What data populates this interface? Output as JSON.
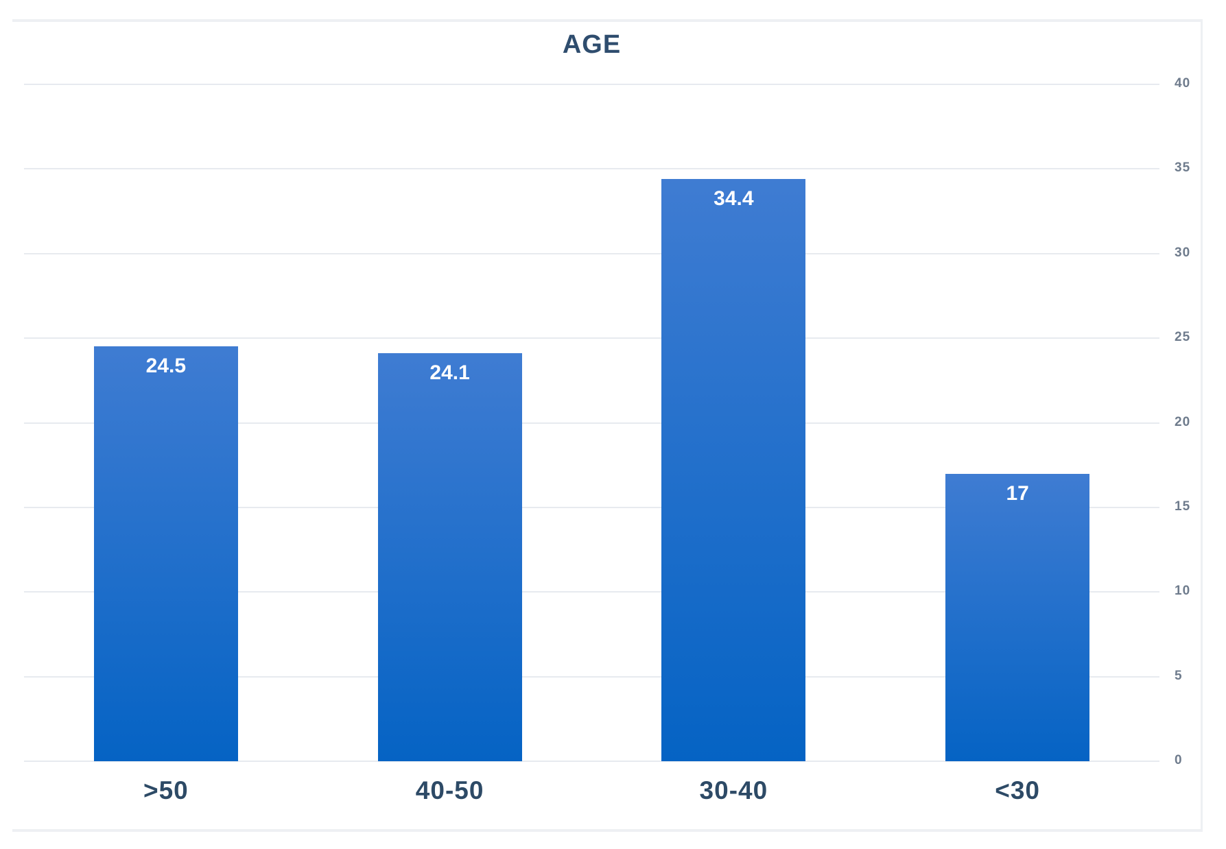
{
  "chart_data": {
    "type": "bar",
    "title": "AGE",
    "categories": [
      ">50",
      "40-50",
      "30-40",
      "<30"
    ],
    "values": [
      24.5,
      24.1,
      34.4,
      17
    ],
    "value_labels": [
      "24.5",
      "24.1",
      "34.4",
      "17"
    ],
    "xlabel": "",
    "ylabel": "",
    "ylim": [
      0,
      40
    ],
    "yticks": [
      0,
      5,
      10,
      15,
      20,
      25,
      30,
      35,
      40
    ],
    "y_axis_side": "right",
    "grid": true,
    "legend_position": "none",
    "colors": {
      "bar_gradient_top": "#3f7cd2",
      "bar_gradient_bottom": "#0563c4",
      "bar_value_text": "#ffffff",
      "title_text": "#2f4d6e",
      "category_text": "#2d4a66",
      "tick_text": "#6e7b8c",
      "gridline": "#e7eaef",
      "frame_border": "#eef0f3",
      "background": "#ffffff"
    }
  }
}
